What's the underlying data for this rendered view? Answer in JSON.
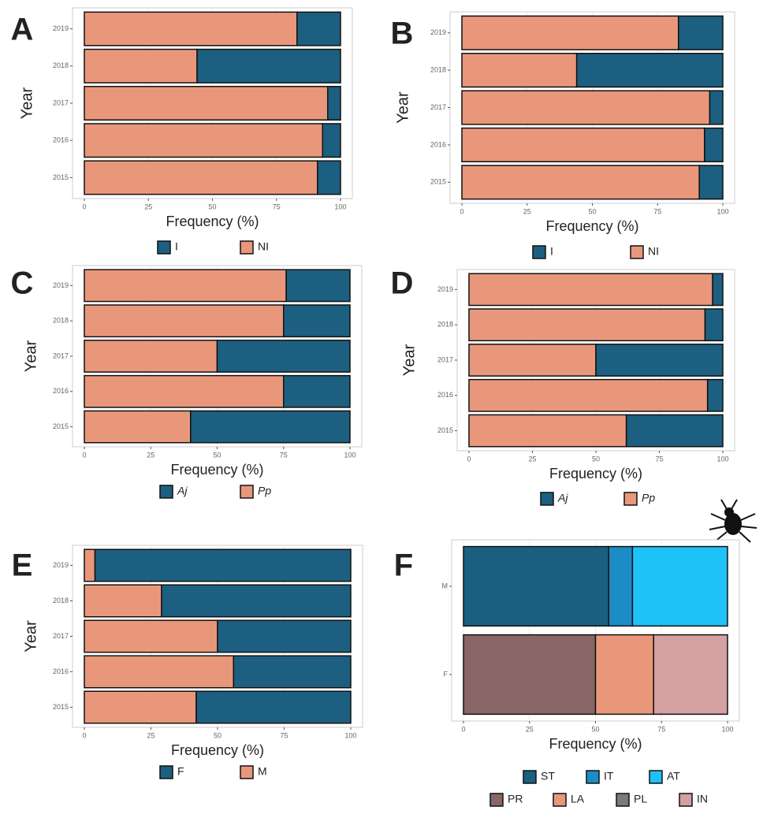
{
  "chart_data": [
    {
      "type": "bar",
      "label": "A",
      "orientation": "horizontal",
      "stacked": true,
      "ylabel": "Year",
      "xlabel": "Frequency  (%)",
      "categories": [
        "2019",
        "2018",
        "2017",
        "2016",
        "2015"
      ],
      "series": [
        {
          "name": "I",
          "color": "#1d5f80",
          "values": [
            17,
            56,
            5,
            7,
            9
          ]
        },
        {
          "name": "NI",
          "color": "#e9977b",
          "values": [
            83,
            44,
            95,
            93,
            91
          ]
        }
      ],
      "xlim": [
        0,
        100
      ],
      "xticks": [
        0,
        25,
        50,
        75,
        100
      ],
      "grid": true
    },
    {
      "type": "bar",
      "label": "B",
      "orientation": "horizontal",
      "stacked": true,
      "ylabel": "Year",
      "xlabel": "Frequency  (%)",
      "categories": [
        "2019",
        "2018",
        "2017",
        "2016",
        "2015"
      ],
      "series": [
        {
          "name": "I",
          "color": "#1d5f80",
          "values": [
            17,
            56,
            5,
            7,
            9
          ]
        },
        {
          "name": "NI",
          "color": "#e9977b",
          "values": [
            83,
            44,
            95,
            93,
            91
          ]
        }
      ],
      "xlim": [
        0,
        100
      ],
      "xticks": [
        0,
        25,
        50,
        75,
        100
      ],
      "grid": true
    },
    {
      "type": "bar",
      "label": "C",
      "orientation": "horizontal",
      "stacked": true,
      "ylabel": "Year",
      "xlabel": "Frequency  (%)",
      "categories": [
        "2019",
        "2018",
        "2017",
        "2016",
        "2015"
      ],
      "series": [
        {
          "name": "Aj",
          "color": "#1d5f80",
          "values": [
            24,
            25,
            50,
            25,
            60
          ]
        },
        {
          "name": "Pp",
          "color": "#e9977b",
          "values": [
            76,
            75,
            50,
            75,
            40
          ]
        }
      ],
      "xlim": [
        0,
        100
      ],
      "xticks": [
        0,
        25,
        50,
        75,
        100
      ],
      "grid": true
    },
    {
      "type": "bar",
      "label": "D",
      "orientation": "horizontal",
      "stacked": true,
      "ylabel": "Year",
      "xlabel": "Frequency  (%)",
      "categories": [
        "2019",
        "2018",
        "2017",
        "2016",
        "2015"
      ],
      "series": [
        {
          "name": "Aj",
          "color": "#1d5f80",
          "values": [
            4,
            7,
            50,
            6,
            38
          ]
        },
        {
          "name": "Pp",
          "color": "#e9977b",
          "values": [
            96,
            93,
            50,
            94,
            62
          ]
        }
      ],
      "xlim": [
        0,
        100
      ],
      "xticks": [
        0,
        25,
        50,
        75,
        100
      ],
      "grid": true
    },
    {
      "type": "bar",
      "label": "E",
      "orientation": "horizontal",
      "stacked": true,
      "ylabel": "Year",
      "xlabel": "Frequency  (%)",
      "categories": [
        "2019",
        "2018",
        "2017",
        "2016",
        "2015"
      ],
      "series": [
        {
          "name": "F",
          "color": "#1d5f80",
          "values": [
            96,
            71,
            50,
            44,
            58
          ]
        },
        {
          "name": "M",
          "color": "#e9977b",
          "values": [
            4,
            29,
            50,
            56,
            42
          ]
        }
      ],
      "xlim": [
        0,
        100
      ],
      "xticks": [
        0,
        25,
        50,
        75,
        100
      ],
      "grid": true
    },
    {
      "type": "bar",
      "label": "F",
      "orientation": "horizontal",
      "stacked": true,
      "xlabel": "Frequency (%)",
      "categories": [
        "M",
        "F"
      ],
      "series": [
        {
          "name": "ST",
          "color": "#1a5f80",
          "values": [
            55,
            0
          ]
        },
        {
          "name": "IT",
          "color": "#1b8cc6",
          "values": [
            9,
            0
          ]
        },
        {
          "name": "AT",
          "color": "#1ec2f7",
          "values": [
            36,
            0
          ]
        },
        {
          "name": "PR",
          "color": "#8a6666",
          "values": [
            0,
            50
          ]
        },
        {
          "name": "LA",
          "color": "#e9977b",
          "values": [
            0,
            22
          ]
        },
        {
          "name": "PL",
          "color": "#7a7a7a",
          "values": [
            0,
            0
          ]
        },
        {
          "name": "IN",
          "color": "#d4a0a2",
          "values": [
            0,
            28
          ]
        }
      ],
      "xlim": [
        0,
        100
      ],
      "xticks": [
        0,
        25,
        50,
        75,
        100
      ],
      "grid": true
    }
  ]
}
